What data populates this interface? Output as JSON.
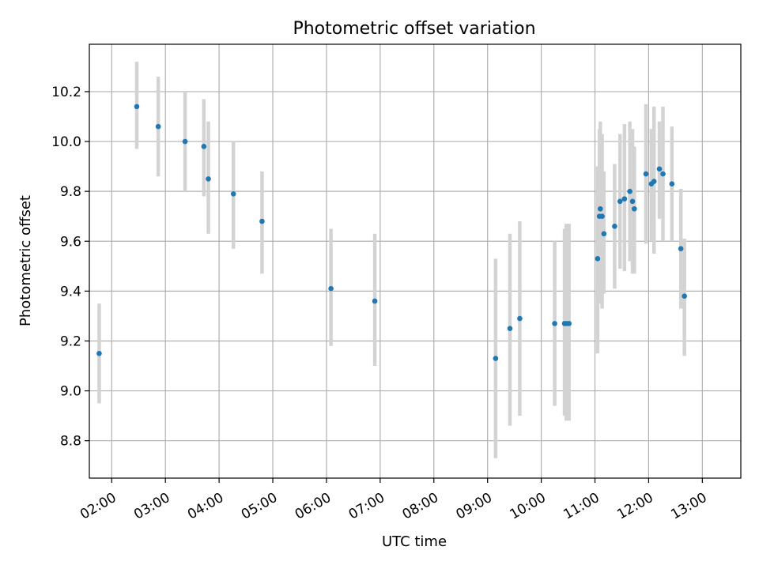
{
  "chart_data": {
    "type": "scatter",
    "title": "Photometric offset variation",
    "xlabel": "UTC time",
    "ylabel": "Photometric offset",
    "xlim": [
      "01:35",
      "13:43"
    ],
    "ylim": [
      8.65,
      10.39
    ],
    "x_ticks": [
      "02:00",
      "03:00",
      "04:00",
      "05:00",
      "06:00",
      "07:00",
      "08:00",
      "09:00",
      "10:00",
      "11:00",
      "12:00",
      "13:00"
    ],
    "y_ticks": [
      "8.8",
      "9.0",
      "9.2",
      "9.4",
      "9.6",
      "9.8",
      "10.0",
      "10.2"
    ],
    "grid": true,
    "colors": {
      "point": "#1f77b4",
      "errorbar": "#d3d3d3",
      "grid": "#b0b0b0"
    },
    "points": [
      {
        "x": "01:46",
        "y": 9.15,
        "ylow": 8.95,
        "yhigh": 9.35
      },
      {
        "x": "02:28",
        "y": 10.14,
        "ylow": 9.97,
        "yhigh": 10.32
      },
      {
        "x": "02:52",
        "y": 10.06,
        "ylow": 9.86,
        "yhigh": 10.26
      },
      {
        "x": "03:22",
        "y": 10.0,
        "ylow": 9.8,
        "yhigh": 10.2
      },
      {
        "x": "03:43",
        "y": 9.98,
        "ylow": 9.78,
        "yhigh": 10.17
      },
      {
        "x": "03:48",
        "y": 9.85,
        "ylow": 9.63,
        "yhigh": 10.08
      },
      {
        "x": "04:16",
        "y": 9.79,
        "ylow": 9.57,
        "yhigh": 10.0
      },
      {
        "x": "04:48",
        "y": 9.68,
        "ylow": 9.47,
        "yhigh": 9.88
      },
      {
        "x": "06:05",
        "y": 9.41,
        "ylow": 9.18,
        "yhigh": 9.65
      },
      {
        "x": "06:54",
        "y": 9.36,
        "ylow": 9.1,
        "yhigh": 9.63
      },
      {
        "x": "09:09",
        "y": 9.13,
        "ylow": 8.73,
        "yhigh": 9.53
      },
      {
        "x": "09:25",
        "y": 9.25,
        "ylow": 8.86,
        "yhigh": 9.63
      },
      {
        "x": "09:36",
        "y": 9.29,
        "ylow": 8.9,
        "yhigh": 9.68
      },
      {
        "x": "10:15",
        "y": 9.27,
        "ylow": 8.94,
        "yhigh": 9.6
      },
      {
        "x": "10:26",
        "y": 9.27,
        "ylow": 8.9,
        "yhigh": 9.65
      },
      {
        "x": "10:28",
        "y": 9.27,
        "ylow": 8.88,
        "yhigh": 9.67
      },
      {
        "x": "10:31",
        "y": 9.27,
        "ylow": 8.88,
        "yhigh": 9.67
      },
      {
        "x": "11:03",
        "y": 9.53,
        "ylow": 9.15,
        "yhigh": 9.9
      },
      {
        "x": "11:05",
        "y": 9.7,
        "ylow": 9.35,
        "yhigh": 10.05
      },
      {
        "x": "11:06",
        "y": 9.73,
        "ylow": 9.4,
        "yhigh": 10.08
      },
      {
        "x": "11:08",
        "y": 9.7,
        "ylow": 9.33,
        "yhigh": 10.03
      },
      {
        "x": "11:10",
        "y": 9.63,
        "ylow": 9.39,
        "yhigh": 9.88
      },
      {
        "x": "11:22",
        "y": 9.66,
        "ylow": 9.41,
        "yhigh": 9.91
      },
      {
        "x": "11:28",
        "y": 9.76,
        "ylow": 9.49,
        "yhigh": 10.03
      },
      {
        "x": "11:33",
        "y": 9.77,
        "ylow": 9.48,
        "yhigh": 10.07
      },
      {
        "x": "11:39",
        "y": 9.8,
        "ylow": 9.52,
        "yhigh": 10.08
      },
      {
        "x": "11:42",
        "y": 9.76,
        "ylow": 9.47,
        "yhigh": 10.05
      },
      {
        "x": "11:44",
        "y": 9.73,
        "ylow": 9.47,
        "yhigh": 9.98
      },
      {
        "x": "11:57",
        "y": 9.87,
        "ylow": 9.59,
        "yhigh": 10.15
      },
      {
        "x": "12:03",
        "y": 9.83,
        "ylow": 9.6,
        "yhigh": 10.05
      },
      {
        "x": "12:06",
        "y": 9.84,
        "ylow": 9.55,
        "yhigh": 10.14
      },
      {
        "x": "12:12",
        "y": 9.89,
        "ylow": 9.69,
        "yhigh": 10.08
      },
      {
        "x": "12:16",
        "y": 9.87,
        "ylow": 9.6,
        "yhigh": 10.14
      },
      {
        "x": "12:26",
        "y": 9.83,
        "ylow": 9.6,
        "yhigh": 10.06
      },
      {
        "x": "12:36",
        "y": 9.57,
        "ylow": 9.33,
        "yhigh": 9.81
      },
      {
        "x": "12:40",
        "y": 9.38,
        "ylow": 9.14,
        "yhigh": 9.61
      }
    ]
  }
}
